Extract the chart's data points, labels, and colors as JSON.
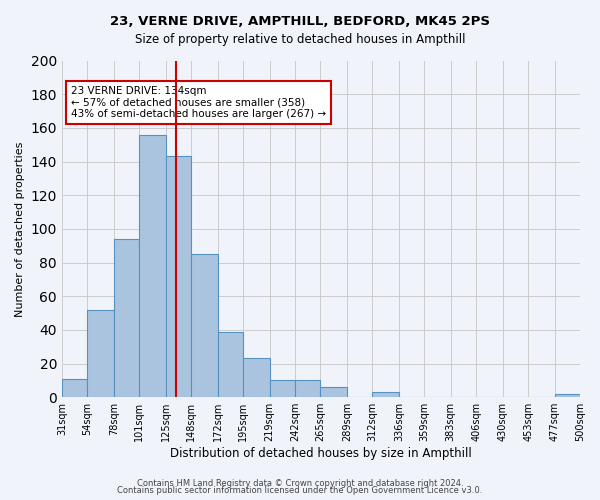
{
  "title": "23, VERNE DRIVE, AMPTHILL, BEDFORD, MK45 2PS",
  "subtitle": "Size of property relative to detached houses in Ampthill",
  "xlabel": "Distribution of detached houses by size in Ampthill",
  "ylabel": "Number of detached properties",
  "footer_lines": [
    "Contains HM Land Registry data © Crown copyright and database right 2024.",
    "Contains public sector information licensed under the Open Government Licence v3.0."
  ],
  "bin_labels": [
    "31sqm",
    "54sqm",
    "78sqm",
    "101sqm",
    "125sqm",
    "148sqm",
    "172sqm",
    "195sqm",
    "219sqm",
    "242sqm",
    "265sqm",
    "289sqm",
    "312sqm",
    "336sqm",
    "359sqm",
    "383sqm",
    "406sqm",
    "430sqm",
    "453sqm",
    "477sqm",
    "500sqm"
  ],
  "bar_values": [
    11,
    52,
    94,
    156,
    143,
    85,
    39,
    23,
    10,
    10,
    6,
    0,
    3,
    0,
    0,
    0,
    0,
    0,
    0,
    2
  ],
  "bar_color": "#aac4e0",
  "bar_edge_color": "#5591c1",
  "vline_x": 134,
  "vline_color": "#cc0000",
  "annotation_box_text": "23 VERNE DRIVE: 134sqm\n← 57% of detached houses are smaller (358)\n43% of semi-detached houses are larger (267) →",
  "annotation_box_color": "#cc0000",
  "annotation_box_fill": "#ffffff",
  "ylim": [
    0,
    200
  ],
  "yticks": [
    0,
    20,
    40,
    60,
    80,
    100,
    120,
    140,
    160,
    180,
    200
  ],
  "grid_color": "#cccccc",
  "background_color": "#f0f4fa",
  "bin_edges": [
    31,
    54,
    78,
    101,
    125,
    148,
    172,
    195,
    219,
    242,
    265,
    289,
    312,
    336,
    359,
    383,
    406,
    430,
    453,
    477,
    500
  ]
}
